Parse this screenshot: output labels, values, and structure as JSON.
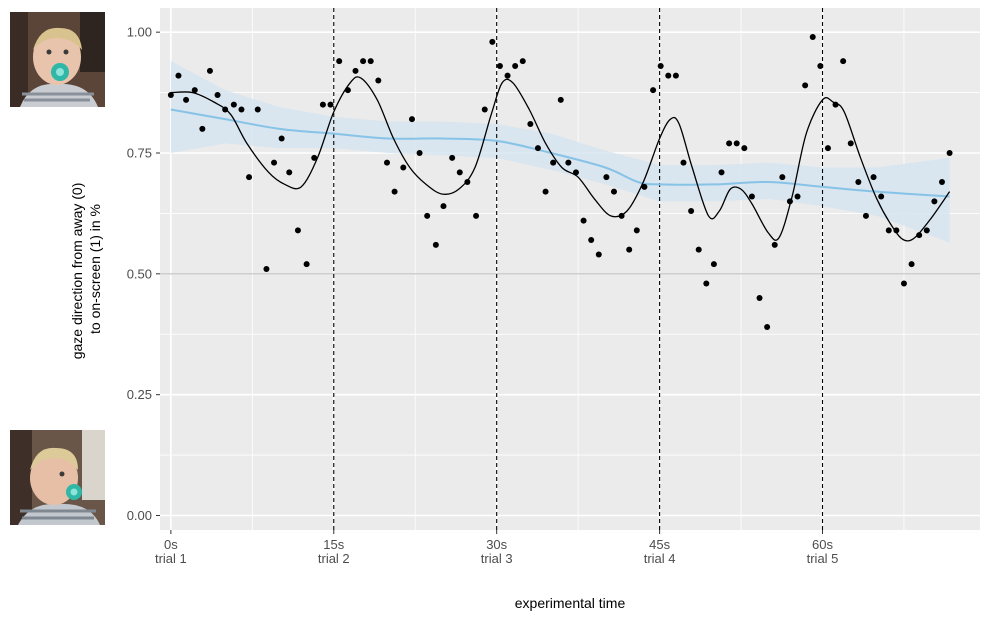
{
  "chart_data": {
    "type": "scatter",
    "xlabel": "experimental time",
    "ylabel": [
      "gaze direction from away (0)",
      "to on-screen (1) in %"
    ],
    "xlim": [
      -1,
      74.5
    ],
    "ylim": [
      -0.03,
      1.05
    ],
    "x_ticks": [
      {
        "x": 0,
        "line1": "0s",
        "line2": "trial 1"
      },
      {
        "x": 15,
        "line1": "15s",
        "line2": "trial 2"
      },
      {
        "x": 30,
        "line1": "30s",
        "line2": "trial 3"
      },
      {
        "x": 45,
        "line1": "45s",
        "line2": "trial 4"
      },
      {
        "x": 60,
        "line1": "60s",
        "line2": "trial 5"
      }
    ],
    "y_ticks": [
      {
        "y": 0.0,
        "label": "0.00"
      },
      {
        "y": 0.25,
        "label": "0.25"
      },
      {
        "y": 0.5,
        "label": "0.50"
      },
      {
        "y": 0.75,
        "label": "0.75"
      },
      {
        "y": 1.0,
        "label": "1.00"
      }
    ],
    "reference_line_y": 0.5,
    "trial_boundaries": [
      15,
      30,
      45,
      60
    ],
    "grid": true,
    "points": [
      [
        0,
        0.87
      ],
      [
        0.7,
        0.91
      ],
      [
        1.4,
        0.86
      ],
      [
        2.2,
        0.88
      ],
      [
        2.9,
        0.8
      ],
      [
        3.6,
        0.92
      ],
      [
        4.3,
        0.87
      ],
      [
        5.0,
        0.84
      ],
      [
        5.8,
        0.85
      ],
      [
        6.5,
        0.84
      ],
      [
        7.2,
        0.7
      ],
      [
        8.0,
        0.84
      ],
      [
        8.8,
        0.51
      ],
      [
        9.5,
        0.73
      ],
      [
        10.2,
        0.78
      ],
      [
        10.9,
        0.71
      ],
      [
        11.7,
        0.59
      ],
      [
        12.5,
        0.52
      ],
      [
        13.2,
        0.74
      ],
      [
        14.0,
        0.85
      ],
      [
        14.7,
        0.85
      ],
      [
        15.5,
        0.94
      ],
      [
        16.3,
        0.88
      ],
      [
        17.0,
        0.92
      ],
      [
        17.7,
        0.94
      ],
      [
        18.4,
        0.94
      ],
      [
        19.1,
        0.9
      ],
      [
        19.9,
        0.73
      ],
      [
        20.6,
        0.67
      ],
      [
        21.4,
        0.72
      ],
      [
        22.2,
        0.82
      ],
      [
        22.9,
        0.75
      ],
      [
        23.6,
        0.62
      ],
      [
        24.4,
        0.56
      ],
      [
        25.1,
        0.64
      ],
      [
        25.9,
        0.74
      ],
      [
        26.6,
        0.71
      ],
      [
        27.3,
        0.69
      ],
      [
        28.1,
        0.62
      ],
      [
        28.9,
        0.84
      ],
      [
        29.6,
        0.98
      ],
      [
        30.3,
        0.93
      ],
      [
        31.0,
        0.91
      ],
      [
        31.7,
        0.93
      ],
      [
        32.4,
        0.94
      ],
      [
        33.1,
        0.81
      ],
      [
        33.8,
        0.76
      ],
      [
        34.5,
        0.67
      ],
      [
        35.2,
        0.73
      ],
      [
        35.9,
        0.86
      ],
      [
        36.6,
        0.73
      ],
      [
        37.3,
        0.71
      ],
      [
        38.0,
        0.61
      ],
      [
        38.7,
        0.57
      ],
      [
        39.4,
        0.54
      ],
      [
        40.1,
        0.7
      ],
      [
        40.8,
        0.67
      ],
      [
        41.5,
        0.62
      ],
      [
        42.2,
        0.55
      ],
      [
        42.9,
        0.59
      ],
      [
        43.6,
        0.68
      ],
      [
        44.4,
        0.88
      ],
      [
        45.1,
        0.93
      ],
      [
        45.8,
        0.91
      ],
      [
        46.5,
        0.91
      ],
      [
        47.2,
        0.73
      ],
      [
        47.9,
        0.63
      ],
      [
        48.6,
        0.55
      ],
      [
        49.3,
        0.48
      ],
      [
        50.0,
        0.52
      ],
      [
        50.7,
        0.71
      ],
      [
        51.4,
        0.77
      ],
      [
        52.1,
        0.77
      ],
      [
        52.8,
        0.76
      ],
      [
        53.5,
        0.66
      ],
      [
        54.2,
        0.45
      ],
      [
        54.9,
        0.39
      ],
      [
        55.6,
        0.56
      ],
      [
        56.3,
        0.7
      ],
      [
        57.0,
        0.65
      ],
      [
        57.7,
        0.66
      ],
      [
        58.4,
        0.89
      ],
      [
        59.1,
        0.99
      ],
      [
        59.8,
        0.93
      ],
      [
        60.5,
        0.76
      ],
      [
        61.2,
        0.85
      ],
      [
        61.9,
        0.94
      ],
      [
        62.6,
        0.77
      ],
      [
        63.3,
        0.69
      ],
      [
        64.0,
        0.62
      ],
      [
        64.7,
        0.7
      ],
      [
        65.4,
        0.66
      ],
      [
        66.1,
        0.59
      ],
      [
        66.8,
        0.59
      ],
      [
        67.5,
        0.48
      ],
      [
        68.2,
        0.52
      ],
      [
        68.9,
        0.58
      ],
      [
        69.6,
        0.59
      ],
      [
        70.3,
        0.65
      ],
      [
        71.0,
        0.69
      ],
      [
        71.7,
        0.75
      ]
    ],
    "trend_line": [
      [
        0,
        0.875
      ],
      [
        2,
        0.875
      ],
      [
        4,
        0.855
      ],
      [
        5.5,
        0.83
      ],
      [
        7,
        0.77
      ],
      [
        9,
        0.71
      ],
      [
        10.5,
        0.685
      ],
      [
        12,
        0.68
      ],
      [
        13.5,
        0.74
      ],
      [
        15,
        0.835
      ],
      [
        16.5,
        0.895
      ],
      [
        17.5,
        0.905
      ],
      [
        19,
        0.86
      ],
      [
        20.5,
        0.78
      ],
      [
        22,
        0.72
      ],
      [
        23.5,
        0.685
      ],
      [
        25,
        0.665
      ],
      [
        26.5,
        0.675
      ],
      [
        28,
        0.72
      ],
      [
        29.5,
        0.83
      ],
      [
        30.5,
        0.895
      ],
      [
        31.5,
        0.895
      ],
      [
        33,
        0.84
      ],
      [
        34.5,
        0.77
      ],
      [
        36,
        0.72
      ],
      [
        37.5,
        0.7
      ],
      [
        39,
        0.655
      ],
      [
        40.5,
        0.62
      ],
      [
        42,
        0.63
      ],
      [
        43.5,
        0.69
      ],
      [
        45,
        0.78
      ],
      [
        46,
        0.82
      ],
      [
        46.8,
        0.81
      ],
      [
        48,
        0.72
      ],
      [
        49.5,
        0.62
      ],
      [
        50.5,
        0.63
      ],
      [
        51.5,
        0.675
      ],
      [
        52.5,
        0.675
      ],
      [
        53.5,
        0.645
      ],
      [
        55,
        0.585
      ],
      [
        56,
        0.575
      ],
      [
        57.2,
        0.66
      ],
      [
        58.5,
        0.79
      ],
      [
        60,
        0.86
      ],
      [
        61,
        0.855
      ],
      [
        62,
        0.835
      ],
      [
        63.5,
        0.74
      ],
      [
        65,
        0.655
      ],
      [
        66.5,
        0.595
      ],
      [
        67.5,
        0.57
      ],
      [
        68.5,
        0.575
      ],
      [
        70,
        0.615
      ],
      [
        71.7,
        0.67
      ]
    ],
    "smooth_line": [
      [
        0,
        0.84
      ],
      [
        5,
        0.82
      ],
      [
        10,
        0.8
      ],
      [
        15,
        0.79
      ],
      [
        20,
        0.78
      ],
      [
        25,
        0.78
      ],
      [
        30,
        0.775
      ],
      [
        35,
        0.75
      ],
      [
        40,
        0.72
      ],
      [
        43,
        0.69
      ],
      [
        45,
        0.685
      ],
      [
        50,
        0.685
      ],
      [
        55,
        0.69
      ],
      [
        60,
        0.68
      ],
      [
        65,
        0.67
      ],
      [
        71.7,
        0.66
      ]
    ],
    "smooth_band": [
      [
        0,
        0.94,
        0.75
      ],
      [
        5,
        0.88,
        0.77
      ],
      [
        10,
        0.845,
        0.76
      ],
      [
        15,
        0.825,
        0.76
      ],
      [
        20,
        0.815,
        0.75
      ],
      [
        25,
        0.815,
        0.745
      ],
      [
        30,
        0.81,
        0.74
      ],
      [
        35,
        0.79,
        0.715
      ],
      [
        40,
        0.755,
        0.685
      ],
      [
        45,
        0.725,
        0.65
      ],
      [
        50,
        0.725,
        0.65
      ],
      [
        55,
        0.73,
        0.655
      ],
      [
        60,
        0.72,
        0.64
      ],
      [
        65,
        0.72,
        0.62
      ],
      [
        71.7,
        0.74,
        0.565
      ]
    ],
    "colors": {
      "panel": "#ebebeb",
      "grid": "#ffffff",
      "point": "#000000",
      "trend": "#000000",
      "smooth": "#87c3e6",
      "band": "#d6e4f0",
      "reference": "#bdbdbd"
    }
  },
  "images": {
    "top": "photo of infant looking at screen with teal pacifier",
    "bottom": "photo of infant looking away with teal pacifier"
  }
}
